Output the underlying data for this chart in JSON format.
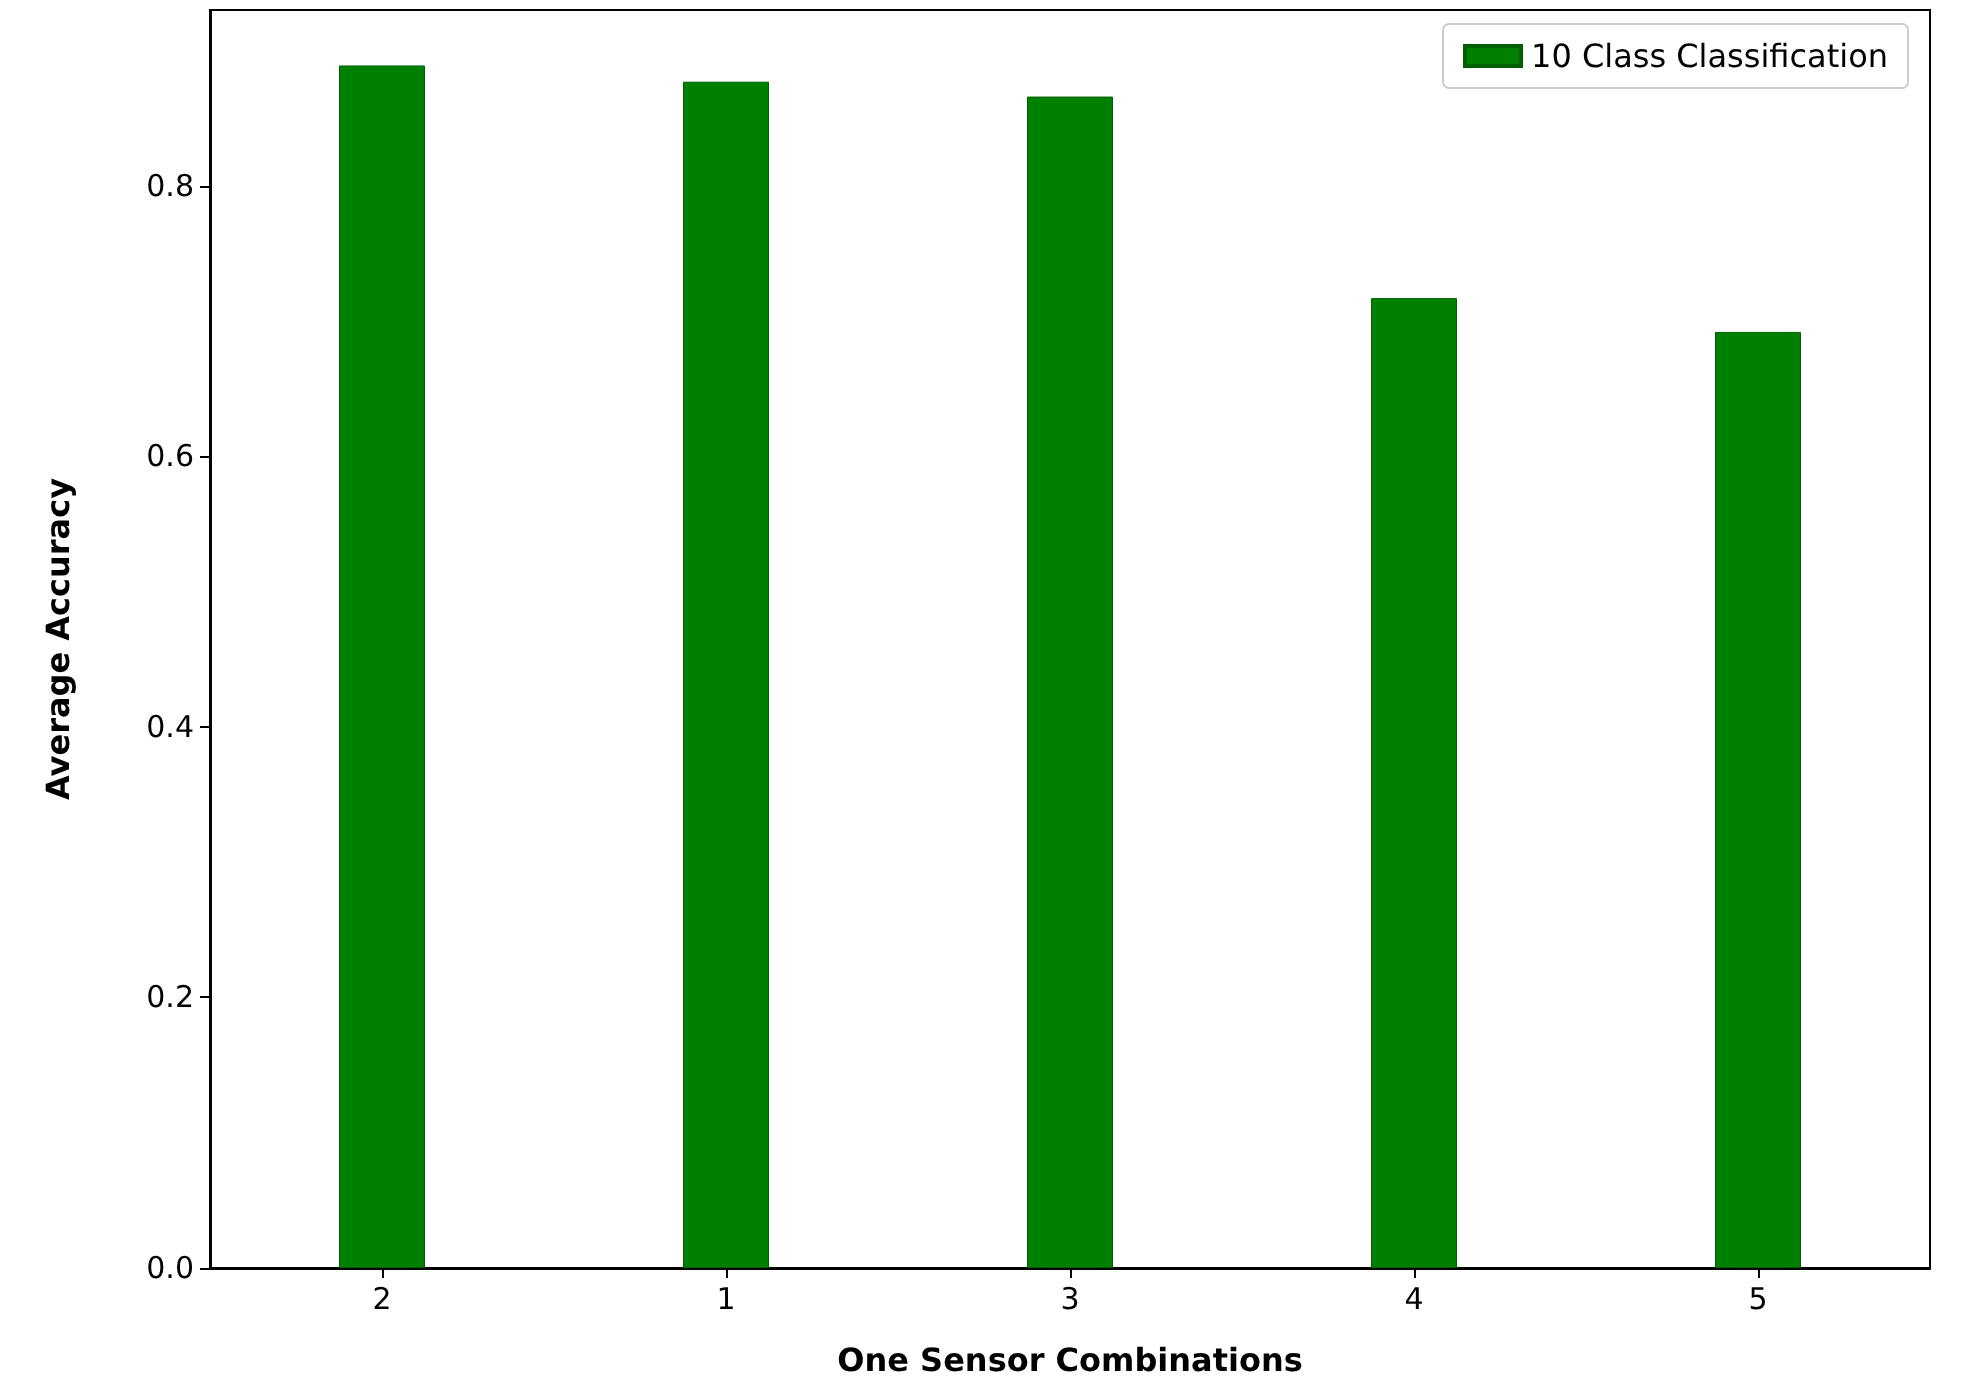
{
  "chart_data": {
    "type": "bar",
    "xlabel": "One Sensor Combinations",
    "ylabel": "Average Accuracy",
    "categories": [
      "2",
      "1",
      "3",
      "4",
      "5"
    ],
    "series": [
      {
        "name": "10 Class Classification",
        "color": "#008000",
        "values": [
          0.889,
          0.877,
          0.866,
          0.717,
          0.692
        ]
      }
    ],
    "ylim": [
      0,
      0.93
    ],
    "yticks": [
      {
        "value": 0,
        "label": "0.0"
      },
      0.2,
      0.4,
      0.6,
      0.8
    ],
    "grid": false,
    "legend": "top right"
  }
}
